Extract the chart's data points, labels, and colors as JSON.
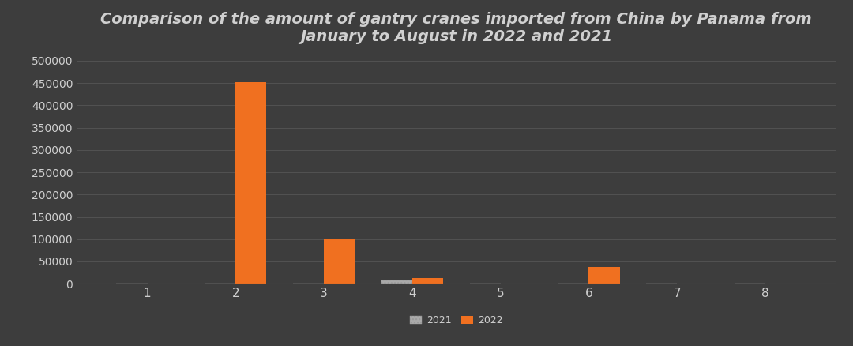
{
  "title": "Comparison of the amount of gantry cranes imported from China by Panama from\nJanuary to August in 2022 and 2021",
  "background_color": "#3d3d3d",
  "text_color": "#d0d0d0",
  "categories": [
    1,
    2,
    3,
    4,
    5,
    6,
    7,
    8
  ],
  "values_2021": [
    0,
    0,
    0,
    7000,
    0,
    0,
    0,
    0
  ],
  "values_2022": [
    0,
    452000,
    100000,
    13000,
    0,
    38000,
    0,
    0
  ],
  "color_2021": "#aaaaaa",
  "color_2022": "#f07020",
  "ylim": [
    0,
    520000
  ],
  "yticks": [
    0,
    50000,
    100000,
    150000,
    200000,
    250000,
    300000,
    350000,
    400000,
    450000,
    500000
  ],
  "bar_width": 0.35,
  "legend_labels": [
    "2021",
    "2022"
  ],
  "grid_color": "#5a5a5a",
  "title_fontsize": 14
}
